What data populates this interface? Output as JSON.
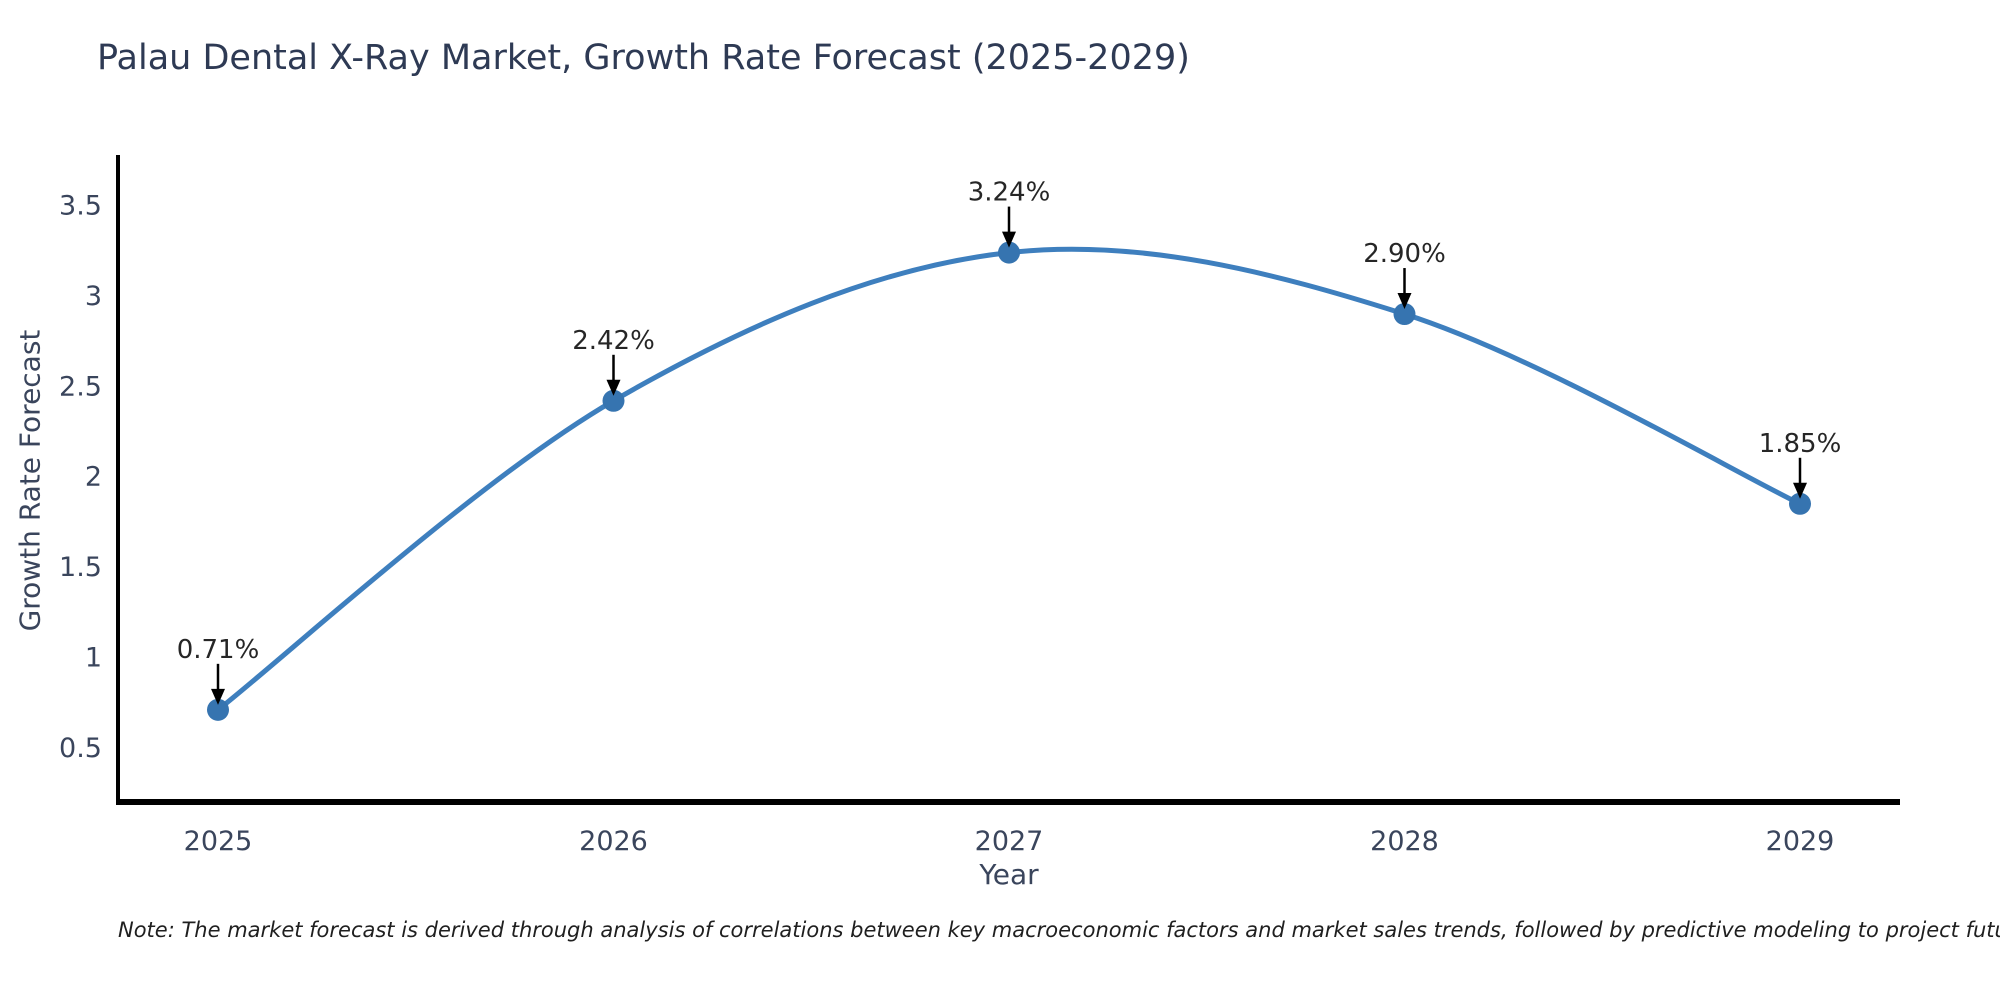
{
  "chart_data": {
    "type": "line",
    "title": "Palau Dental X-Ray Market, Growth Rate Forecast (2025-2029)",
    "xlabel": "Year",
    "ylabel": "Growth Rate Forecast",
    "categories": [
      "2025",
      "2026",
      "2027",
      "2028",
      "2029"
    ],
    "series": [
      {
        "name": "Growth Rate Forecast",
        "values": [
          0.71,
          2.42,
          3.24,
          2.9,
          1.85
        ]
      }
    ],
    "point_labels": [
      "0.71%",
      "2.42%",
      "3.24%",
      "2.90%",
      "1.85%"
    ],
    "yticks": [
      0.5,
      1,
      1.5,
      2,
      2.5,
      3,
      3.5
    ],
    "ytick_labels": [
      "0.5",
      "1",
      "1.5",
      "2",
      "2.5",
      "3",
      "3.5"
    ],
    "ylim": [
      0.2,
      3.78
    ],
    "grid": false,
    "legend": "none",
    "colors": {
      "line": "#3e7fbe",
      "marker": "#3674b0",
      "arrow": "#000000",
      "axis": "#000000",
      "tick_text": "#3a455c",
      "annotation_text": "#262626",
      "title_text": "#2e3a54"
    }
  },
  "note": "Note: The market forecast is derived through analysis of correlations between key macroeconomic factors and market sales trends, followed by predictive modeling to project future sales"
}
